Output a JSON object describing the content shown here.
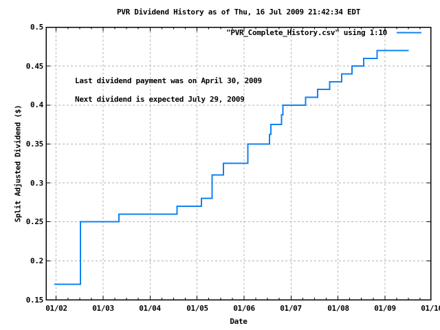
{
  "chart_data": {
    "type": "line",
    "line_style": "steps",
    "title": "PVR Dividend History as of Thu, 16 Jul 2009 21:42:34 EDT",
    "xlabel": "Date",
    "ylabel": "Split Adjusted Dividend ($)",
    "legend": {
      "label": "\"PVR_Complete_History.csv\" using 1:10",
      "position": "top-right-inside"
    },
    "annotations": [
      "Last dividend payment was on April 30, 2009",
      "Next dividend is expected July 29, 2009"
    ],
    "grid": true,
    "x_axis": {
      "min": 2001.785,
      "max": 2009.975,
      "ticks": [
        {
          "year": 2002,
          "label": "01/02"
        },
        {
          "year": 2003,
          "label": "01/03"
        },
        {
          "year": 2004,
          "label": "01/04"
        },
        {
          "year": 2005,
          "label": "01/05"
        },
        {
          "year": 2006,
          "label": "01/06"
        },
        {
          "year": 2007,
          "label": "01/07"
        },
        {
          "year": 2008,
          "label": "01/08"
        },
        {
          "year": 2009,
          "label": "01/09"
        },
        {
          "year": 2010,
          "label": "01/10"
        }
      ],
      "minor_tick_interval": 0.25
    },
    "y_axis": {
      "min": 0.15,
      "max": 0.5,
      "ticks": [
        {
          "value": 0.15,
          "label": "0.15"
        },
        {
          "value": 0.2,
          "label": "0.2"
        },
        {
          "value": 0.25,
          "label": "0.25"
        },
        {
          "value": 0.3,
          "label": "0.3"
        },
        {
          "value": 0.35,
          "label": "0.35"
        },
        {
          "value": 0.4,
          "label": "0.4"
        },
        {
          "value": 0.45,
          "label": "0.45"
        },
        {
          "value": 0.5,
          "label": "0.5"
        }
      ]
    },
    "series": [
      {
        "name": "\"PVR_Complete_History.csv\" using 1:10",
        "color": "#0e82f0",
        "points": [
          [
            2001.96,
            0.17
          ],
          [
            2002.52,
            0.17
          ],
          [
            2002.52,
            0.25
          ],
          [
            2003.34,
            0.25
          ],
          [
            2003.34,
            0.26
          ],
          [
            2004.57,
            0.26
          ],
          [
            2004.57,
            0.27
          ],
          [
            2005.09,
            0.27
          ],
          [
            2005.09,
            0.28
          ],
          [
            2005.32,
            0.28
          ],
          [
            2005.32,
            0.31
          ],
          [
            2005.56,
            0.31
          ],
          [
            2005.56,
            0.325
          ],
          [
            2006.08,
            0.325
          ],
          [
            2006.08,
            0.35
          ],
          [
            2006.54,
            0.35
          ],
          [
            2006.54,
            0.3625
          ],
          [
            2006.57,
            0.3625
          ],
          [
            2006.57,
            0.375
          ],
          [
            2006.8,
            0.375
          ],
          [
            2006.8,
            0.3875
          ],
          [
            2006.83,
            0.3875
          ],
          [
            2006.83,
            0.4
          ],
          [
            2007.31,
            0.4
          ],
          [
            2007.31,
            0.41
          ],
          [
            2007.57,
            0.41
          ],
          [
            2007.57,
            0.42
          ],
          [
            2007.82,
            0.42
          ],
          [
            2007.82,
            0.43
          ],
          [
            2008.08,
            0.43
          ],
          [
            2008.08,
            0.44
          ],
          [
            2008.3,
            0.44
          ],
          [
            2008.3,
            0.45
          ],
          [
            2008.55,
            0.45
          ],
          [
            2008.55,
            0.46
          ],
          [
            2008.83,
            0.46
          ],
          [
            2008.83,
            0.47
          ],
          [
            2009.51,
            0.47
          ]
        ]
      }
    ],
    "colors": {
      "line": "#0e82f0",
      "grid": "#b2b2b2",
      "axis": "#000000",
      "background": "#ffffff"
    }
  }
}
